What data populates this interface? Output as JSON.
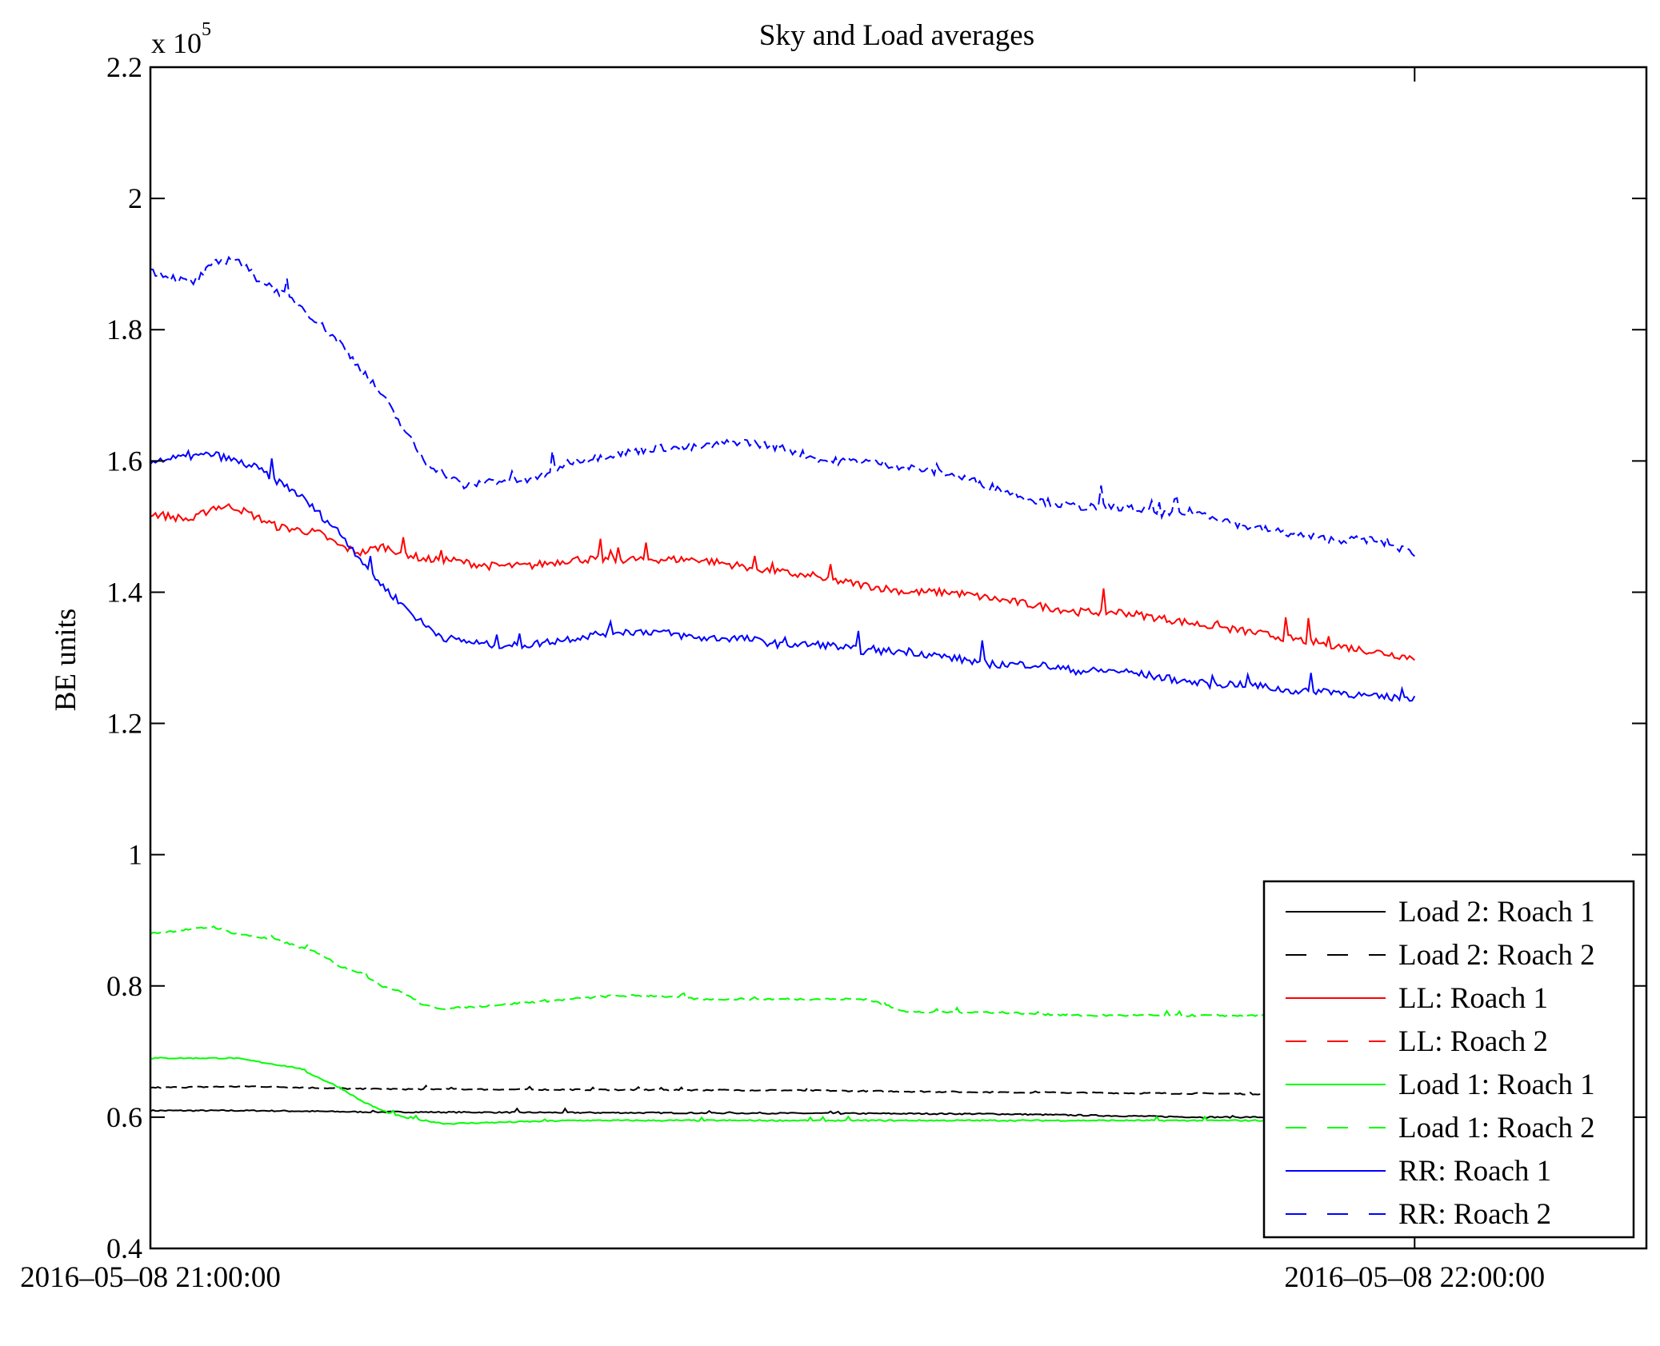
{
  "chart_data": {
    "type": "line",
    "title": "Sky and Load averages",
    "xlabel": "",
    "ylabel": "BE units",
    "y_multiplier_label": "x 10",
    "y_multiplier_exp": "5",
    "xlim_minutes": [
      0,
      71
    ],
    "ylim": [
      0.4,
      2.2
    ],
    "yticks": [
      0.4,
      0.6,
      0.8,
      1,
      1.2,
      1.4,
      1.6,
      1.8,
      2,
      2.2
    ],
    "ytick_labels": [
      "0.4",
      "0.6",
      "0.8",
      "1",
      "1.2",
      "1.4",
      "1.6",
      "1.8",
      "2",
      "2.2"
    ],
    "xticks_minutes": [
      0,
      60
    ],
    "xtick_labels": [
      "2016–05–08 21:00:00",
      "2016–05–08 22:00:00"
    ],
    "x_unit": "minutes after 2016-05-08 21:00:00",
    "y_unit": "x 10^5 BE units",
    "grid": false,
    "legend_position": "bottom-right",
    "series": [
      {
        "name": "Load 2: Roach 1",
        "color": "#000000",
        "dash": false,
        "noise": 0.002,
        "x": [
          0,
          5,
          10,
          20,
          30,
          40,
          50,
          54
        ],
        "y": [
          0.61,
          0.61,
          0.608,
          0.607,
          0.606,
          0.605,
          0.6,
          0.6
        ]
      },
      {
        "name": "Load 2: Roach 2",
        "color": "#000000",
        "dash": true,
        "noise": 0.002,
        "x": [
          0,
          5,
          10,
          20,
          30,
          40,
          50,
          54
        ],
        "y": [
          0.645,
          0.647,
          0.643,
          0.642,
          0.641,
          0.638,
          0.636,
          0.635
        ]
      },
      {
        "name": "LL: Roach 1",
        "color": "#ff0000",
        "dash": false,
        "noise": 0.012,
        "x": [
          0,
          2,
          3,
          4,
          6,
          8,
          9,
          10,
          11,
          12,
          13,
          14,
          16,
          18,
          20,
          22,
          24,
          26,
          28,
          30,
          32,
          34,
          36,
          38,
          40,
          42,
          44,
          46,
          48,
          50,
          52,
          54,
          56,
          58,
          60
        ],
        "y": [
          1.52,
          1.51,
          1.53,
          1.53,
          1.5,
          1.49,
          1.47,
          1.46,
          1.47,
          1.46,
          1.45,
          1.45,
          1.44,
          1.44,
          1.45,
          1.45,
          1.45,
          1.45,
          1.44,
          1.43,
          1.42,
          1.41,
          1.4,
          1.4,
          1.39,
          1.38,
          1.37,
          1.37,
          1.36,
          1.35,
          1.34,
          1.33,
          1.32,
          1.31,
          1.3
        ]
      },
      {
        "name": "LL: Roach 2",
        "color": "#ff0000",
        "dash": true,
        "noise": 0,
        "x": [],
        "y": []
      },
      {
        "name": "Load 1: Roach 1",
        "color": "#00ff00",
        "dash": false,
        "noise": 0.002,
        "x": [
          0,
          3,
          4,
          6,
          7,
          8,
          9,
          10,
          11,
          12,
          13,
          14,
          20,
          30,
          40,
          54
        ],
        "y": [
          0.69,
          0.69,
          0.69,
          0.68,
          0.675,
          0.66,
          0.645,
          0.625,
          0.61,
          0.6,
          0.595,
          0.59,
          0.595,
          0.595,
          0.595,
          0.595
        ]
      },
      {
        "name": "Load 1: Roach 2",
        "color": "#00ff00",
        "dash": true,
        "noise": 0.003,
        "x": [
          0,
          3,
          4,
          6,
          7,
          8,
          9,
          10,
          11,
          12,
          13,
          14,
          16,
          18,
          20,
          22,
          24,
          26,
          30,
          34,
          36,
          40,
          44,
          50,
          54
        ],
        "y": [
          0.88,
          0.89,
          0.88,
          0.87,
          0.86,
          0.85,
          0.83,
          0.82,
          0.8,
          0.79,
          0.77,
          0.765,
          0.77,
          0.775,
          0.78,
          0.785,
          0.785,
          0.78,
          0.78,
          0.78,
          0.76,
          0.76,
          0.755,
          0.755,
          0.755
        ]
      },
      {
        "name": "RR: Roach 1",
        "color": "#0000ff",
        "dash": false,
        "noise": 0.012,
        "x": [
          0,
          3,
          5,
          7,
          8,
          9,
          10,
          11,
          12,
          13,
          14,
          16,
          18,
          20,
          22,
          24,
          26,
          28,
          30,
          32,
          34,
          36,
          38,
          40,
          42,
          44,
          46,
          48,
          50,
          52,
          54,
          56,
          58,
          60
        ],
        "y": [
          1.6,
          1.61,
          1.59,
          1.55,
          1.52,
          1.49,
          1.45,
          1.41,
          1.38,
          1.35,
          1.33,
          1.32,
          1.32,
          1.33,
          1.34,
          1.34,
          1.33,
          1.33,
          1.32,
          1.32,
          1.31,
          1.31,
          1.3,
          1.29,
          1.29,
          1.28,
          1.28,
          1.27,
          1.26,
          1.26,
          1.25,
          1.25,
          1.24,
          1.24
        ]
      },
      {
        "name": "RR: Roach 2",
        "color": "#0000ff",
        "dash": true,
        "noise": 0.012,
        "x": [
          0,
          2,
          3,
          4,
          5,
          6,
          7,
          8,
          9,
          10,
          11,
          12,
          13,
          14,
          15,
          16,
          18,
          20,
          22,
          24,
          26,
          28,
          30,
          32,
          34,
          36,
          38,
          40,
          42,
          44,
          46,
          48,
          50,
          52,
          54,
          56,
          58,
          60
        ],
        "y": [
          1.89,
          1.87,
          1.9,
          1.91,
          1.88,
          1.86,
          1.84,
          1.81,
          1.78,
          1.74,
          1.7,
          1.65,
          1.6,
          1.58,
          1.56,
          1.57,
          1.57,
          1.6,
          1.61,
          1.62,
          1.62,
          1.63,
          1.62,
          1.6,
          1.6,
          1.59,
          1.58,
          1.56,
          1.54,
          1.53,
          1.53,
          1.52,
          1.52,
          1.5,
          1.49,
          1.48,
          1.48,
          1.46
        ]
      }
    ]
  }
}
